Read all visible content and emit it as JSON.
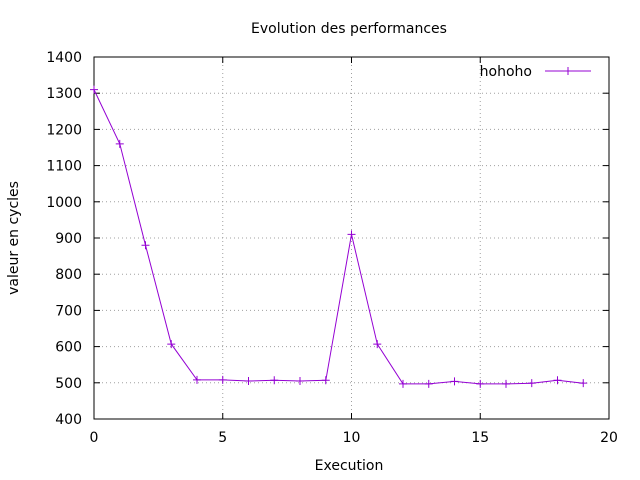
{
  "chart_data": {
    "type": "line",
    "title": "Evolution des performances",
    "xlabel": "Execution",
    "ylabel": "valeur en cycles",
    "xlim": [
      0,
      20
    ],
    "ylim": [
      400,
      1400
    ],
    "xticks": [
      0,
      5,
      10,
      15,
      20
    ],
    "yticks": [
      400,
      500,
      600,
      700,
      800,
      900,
      1000,
      1100,
      1200,
      1300,
      1400
    ],
    "grid": true,
    "legend_position": "top-right",
    "series": [
      {
        "name": "hohoho",
        "color": "#9400d3",
        "marker": "plus",
        "x": [
          0,
          1,
          2,
          3,
          4,
          5,
          6,
          7,
          8,
          9,
          10,
          11,
          12,
          13,
          14,
          15,
          16,
          17,
          18,
          19
        ],
        "y": [
          1310,
          1160,
          880,
          607,
          508,
          508,
          505,
          507,
          505,
          507,
          910,
          607,
          497,
          497,
          504,
          497,
          497,
          499,
          507,
          499
        ]
      }
    ]
  }
}
